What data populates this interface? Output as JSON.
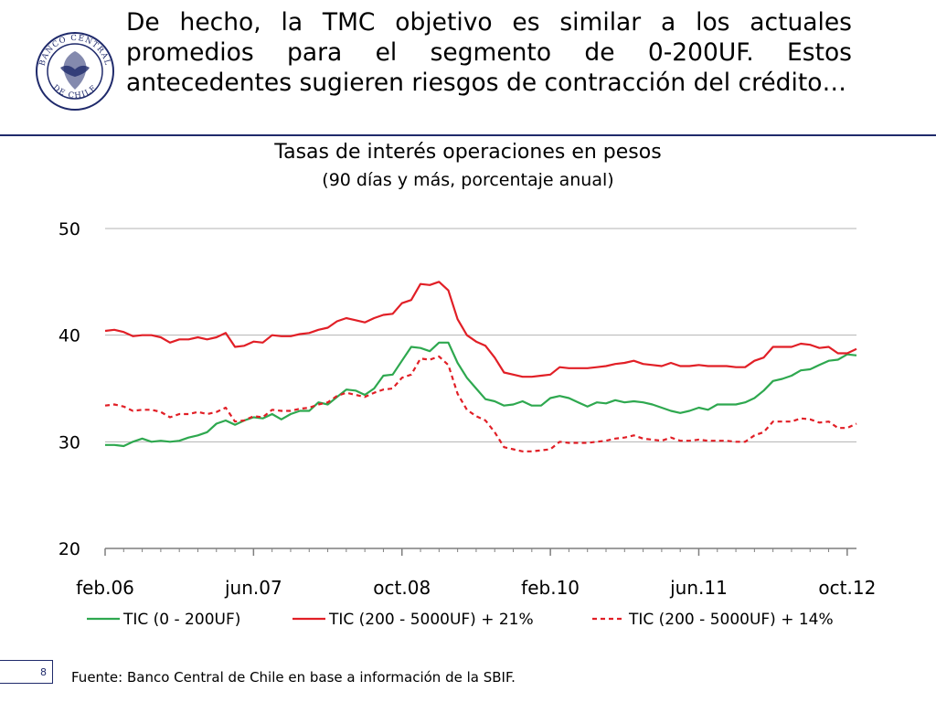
{
  "slide": {
    "title": "De hecho, la TMC objetivo es similar a los actuales promedios para el segmento de 0-200UF. Estos antecedentes sugieren riesgos de contracción del crédito…",
    "page_number": "8",
    "source": "Fuente: Banco Central de Chile en base a información de la SBIF.",
    "logo_text": "BANCO CENTRAL DE CHILE",
    "rule_color": "#1f2a6b"
  },
  "chart_data": {
    "type": "line",
    "title": "Tasas de interés operaciones en pesos",
    "subtitle": "(90 días y más, porcentaje anual)",
    "ylim": [
      20,
      50
    ],
    "yticks": [
      20,
      30,
      40,
      50
    ],
    "grid": true,
    "legend_position": "bottom",
    "x_start": "feb.06",
    "x_end": "nov.12",
    "x_ticks": [
      "feb.06",
      "jun.07",
      "oct.08",
      "feb.10",
      "jun.11",
      "oct.12"
    ],
    "series": [
      {
        "name": "TIC (0 - 200UF)",
        "color": "#2ea84f",
        "dash": "solid",
        "values": [
          29.7,
          29.7,
          29.6,
          30.0,
          30.3,
          30.0,
          30.1,
          30.0,
          30.1,
          30.4,
          30.6,
          30.9,
          31.7,
          32.0,
          31.6,
          32.0,
          32.3,
          32.2,
          32.6,
          32.1,
          32.6,
          32.9,
          32.9,
          33.7,
          33.5,
          34.2,
          34.9,
          34.8,
          34.4,
          35.0,
          36.2,
          36.3,
          37.6,
          38.9,
          38.8,
          38.5,
          39.3,
          39.3,
          37.4,
          36.0,
          35.0,
          34.0,
          33.8,
          33.4,
          33.5,
          33.8,
          33.4,
          33.4,
          34.1,
          34.3,
          34.1,
          33.7,
          33.3,
          33.7,
          33.6,
          33.9,
          33.7,
          33.8,
          33.7,
          33.5,
          33.2,
          32.9,
          32.7,
          32.9,
          33.2,
          33.0,
          33.5,
          33.5,
          33.5,
          33.7,
          34.1,
          34.8,
          35.7,
          35.9,
          36.2,
          36.7,
          36.8,
          37.2,
          37.6,
          37.7,
          38.2,
          38.1
        ]
      },
      {
        "name": "TIC (200 - 5000UF) + 21%",
        "color": "#e11f26",
        "dash": "solid",
        "values": [
          40.4,
          40.5,
          40.3,
          39.9,
          40.0,
          40.0,
          39.8,
          39.3,
          39.6,
          39.6,
          39.8,
          39.6,
          39.8,
          40.2,
          38.9,
          39.0,
          39.4,
          39.3,
          40.0,
          39.9,
          39.9,
          40.1,
          40.2,
          40.5,
          40.7,
          41.3,
          41.6,
          41.4,
          41.2,
          41.6,
          41.9,
          42.0,
          43.0,
          43.3,
          44.8,
          44.7,
          45.0,
          44.2,
          41.5,
          40.0,
          39.4,
          39.0,
          37.9,
          36.5,
          36.3,
          36.1,
          36.1,
          36.2,
          36.3,
          37.0,
          36.9,
          36.9,
          36.9,
          37.0,
          37.1,
          37.3,
          37.4,
          37.6,
          37.3,
          37.2,
          37.1,
          37.4,
          37.1,
          37.1,
          37.2,
          37.1,
          37.1,
          37.1,
          37.0,
          37.0,
          37.6,
          37.9,
          38.9,
          38.9,
          38.9,
          39.2,
          39.1,
          38.8,
          38.9,
          38.3,
          38.3,
          38.7
        ]
      },
      {
        "name": "TIC (200 - 5000UF) + 14%",
        "color": "#e11f26",
        "dash": "dashed",
        "values": [
          33.4,
          33.5,
          33.3,
          32.9,
          33.0,
          33.0,
          32.8,
          32.3,
          32.6,
          32.6,
          32.8,
          32.6,
          32.8,
          33.2,
          31.9,
          32.0,
          32.4,
          32.3,
          33.0,
          32.9,
          32.9,
          33.1,
          33.2,
          33.5,
          33.7,
          34.3,
          34.6,
          34.4,
          34.2,
          34.6,
          34.9,
          35.0,
          36.0,
          36.3,
          37.8,
          37.7,
          38.0,
          37.2,
          34.5,
          33.0,
          32.4,
          32.0,
          30.9,
          29.5,
          29.3,
          29.1,
          29.1,
          29.2,
          29.3,
          30.0,
          29.9,
          29.9,
          29.9,
          30.0,
          30.1,
          30.3,
          30.4,
          30.6,
          30.3,
          30.2,
          30.1,
          30.4,
          30.1,
          30.1,
          30.2,
          30.1,
          30.1,
          30.1,
          30.0,
          30.0,
          30.6,
          30.9,
          31.9,
          31.9,
          31.9,
          32.2,
          32.1,
          31.8,
          31.9,
          31.3,
          31.3,
          31.7
        ]
      }
    ]
  }
}
